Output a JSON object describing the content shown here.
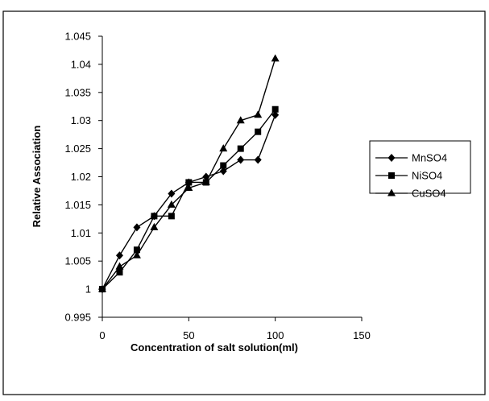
{
  "chart_data": {
    "type": "line",
    "title": "",
    "xlabel": "Concentration of salt solution(ml)",
    "ylabel": "Relative Association",
    "xlim": [
      0,
      150
    ],
    "ylim": [
      0.995,
      1.045
    ],
    "xticks": [
      0,
      50,
      100,
      150
    ],
    "yticks": [
      0.995,
      1,
      1.005,
      1.01,
      1.015,
      1.02,
      1.025,
      1.03,
      1.035,
      1.04,
      1.045
    ],
    "xtick_labels": [
      "0",
      "50",
      "100",
      "150"
    ],
    "ytick_labels": [
      "0.995",
      "1",
      "1.005",
      "1.01",
      "1.015",
      "1.02",
      "1.025",
      "1.03",
      "1.035",
      "1.04",
      "1.045"
    ],
    "grid": false,
    "legend_position": "right",
    "series": [
      {
        "name": "MnSO4",
        "marker": "diamond",
        "color": "#000000",
        "x": [
          0,
          10,
          20,
          30,
          40,
          50,
          60,
          70,
          80,
          90,
          100
        ],
        "y": [
          1.0,
          1.006,
          1.011,
          1.013,
          1.017,
          1.019,
          1.02,
          1.021,
          1.023,
          1.023,
          1.031
        ]
      },
      {
        "name": "NiSO4",
        "marker": "square",
        "color": "#000000",
        "x": [
          0,
          10,
          20,
          30,
          40,
          50,
          60,
          70,
          80,
          90,
          100
        ],
        "y": [
          1.0,
          1.003,
          1.007,
          1.013,
          1.013,
          1.019,
          1.019,
          1.022,
          1.025,
          1.028,
          1.032
        ]
      },
      {
        "name": "CuSO4",
        "marker": "triangle",
        "color": "#000000",
        "x": [
          0,
          10,
          20,
          30,
          40,
          50,
          60,
          70,
          80,
          90,
          100
        ],
        "y": [
          1.0,
          1.004,
          1.006,
          1.011,
          1.015,
          1.018,
          1.019,
          1.025,
          1.03,
          1.031,
          1.041
        ]
      }
    ]
  }
}
